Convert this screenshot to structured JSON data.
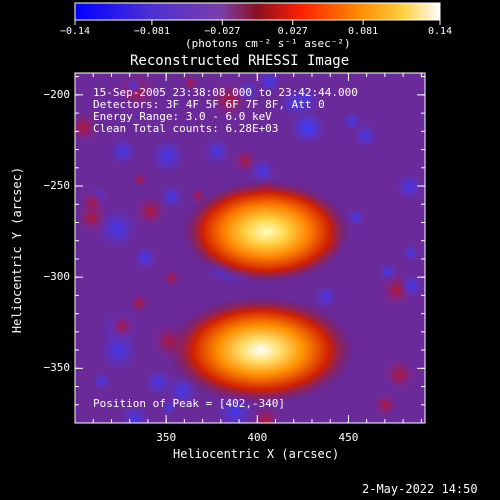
{
  "chart_data": {
    "type": "heatmap",
    "title": "Reconstructed RHESSI Image",
    "xlabel": "Heliocentric X (arcsec)",
    "ylabel": "Heliocentric Y (arcsec)",
    "xlim": [
      300,
      492
    ],
    "ylim": [
      -380,
      -188
    ],
    "x_ticks": [
      "350",
      "400",
      "450"
    ],
    "y_ticks": [
      "-200",
      "-250",
      "-300",
      "-350"
    ],
    "colorbar": {
      "range": [
        -0.14,
        0.14
      ],
      "ticks": [
        "-0.14",
        "-0.081",
        "-0.027",
        "0.027",
        "0.081",
        "0.14"
      ],
      "unit_label": "(photons cm⁻² s⁻¹ asec⁻²)"
    },
    "sources": [
      {
        "x": 405,
        "y": -275,
        "intensity": 0.105,
        "note": "upper source"
      },
      {
        "x": 402,
        "y": -340,
        "intensity": 0.14,
        "note": "lower source (peak)"
      }
    ],
    "annotations": {
      "time": "15-Sep-2005 23:38:08.000 to 23:42:44.000",
      "detectors": "Detectors: 3F 4F 5F 6F 7F 8F, Att 0",
      "energy": "Energy Range: 3.0 - 6.0 keV",
      "clean": "Clean    Total counts: 6.28E+03",
      "peak": "Position of Peak = [402,-340]"
    },
    "date_stamp": "2-May-2022 14:50"
  }
}
